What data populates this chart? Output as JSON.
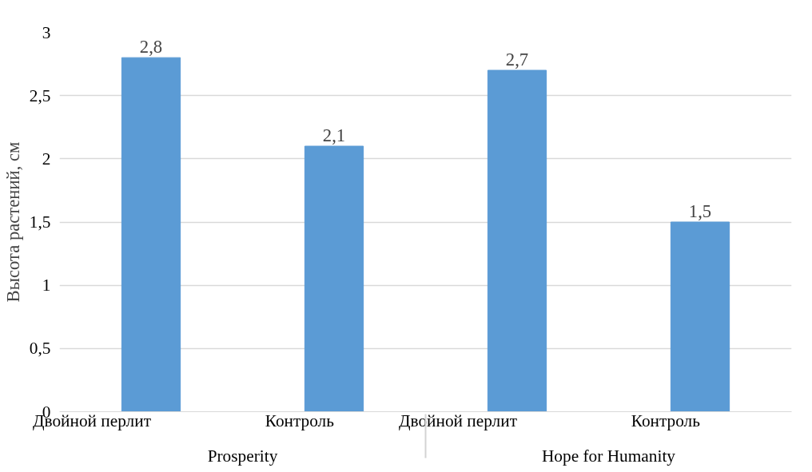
{
  "chart_data": {
    "type": "bar",
    "ylabel": "Высота растений, см",
    "categories": [
      "Двойной перлит",
      "Контроль",
      "Двойной перлит",
      "Контроль"
    ],
    "annotations": [
      "Prosperity",
      "Hope for Humanity"
    ],
    "values": [
      2.8,
      2.1,
      2.7,
      1.5
    ],
    "value_labels": [
      "2,8",
      "2,1",
      "2,7",
      "1,5"
    ],
    "color": "#5b9bd5",
    "ylim": [
      0,
      3
    ],
    "yticks": [
      0,
      {
        "value": 0.5,
        "label": "0,5"
      },
      1,
      {
        "value": 1.5,
        "label": "1,5"
      },
      2,
      {
        "value": 2.5,
        "label": "2,5"
      },
      3
    ],
    "grid": "y"
  }
}
